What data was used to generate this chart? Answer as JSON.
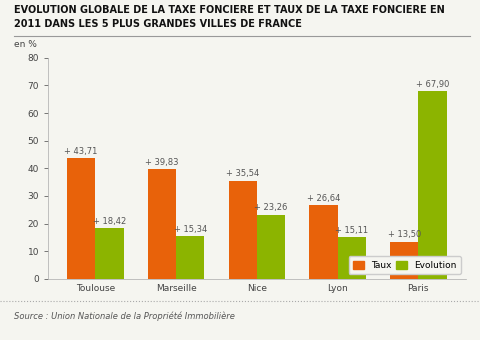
{
  "title_line1": "EVOLUTION GLOBALE DE LA TAXE FONCIERE ET TAUX DE LA TAXE FONCIERE EN",
  "title_line2": "2011 DANS LES 5 PLUS GRANDES VILLES DE FRANCE",
  "ylabel": "en %",
  "cities": [
    "Toulouse",
    "Marseille",
    "Nice",
    "Lyon",
    "Paris"
  ],
  "taux": [
    43.71,
    39.83,
    35.54,
    26.64,
    13.5
  ],
  "evolution": [
    18.42,
    15.34,
    23.26,
    15.11,
    67.9
  ],
  "taux_color": "#E8620A",
  "evolution_color": "#8CB400",
  "ylim": [
    0,
    80
  ],
  "yticks": [
    0,
    10,
    20,
    30,
    40,
    50,
    60,
    70,
    80
  ],
  "legend_taux": "Taux",
  "legend_evolution": "Evolution",
  "source": "Source : Union Nationale de la Propriété Immobilière",
  "bg_color": "#F5F5F0",
  "bar_width": 0.35,
  "title_fontsize": 7.0,
  "label_fontsize": 6.0,
  "tick_fontsize": 6.5,
  "source_fontsize": 6.0
}
